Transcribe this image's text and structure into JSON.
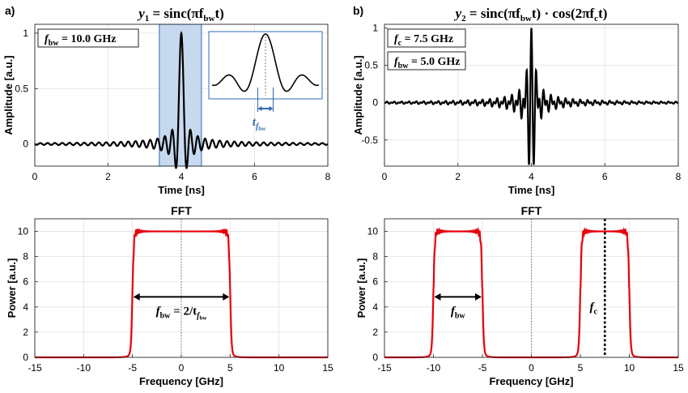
{
  "colors": {
    "signal": "#000000",
    "fft": "#e8000b",
    "highlight_fill": "#c7d9ef",
    "highlight_stroke": "#2e6ab3",
    "annotation_blue": "#2e6ab3",
    "grid": "#e2e2e2"
  },
  "panel_labels": {
    "a": "a)",
    "b": "b)"
  },
  "chart_data": [
    {
      "id": "a_time",
      "type": "line",
      "title_var": "y",
      "title_sub": "1",
      "title_expr": "= sinc(πf",
      "title_expr_sub": "bw",
      "title_expr_end": "t)",
      "xlabel": "Time [ns]",
      "ylabel": "Amplitude [a.u.]",
      "xlim": [
        0,
        8
      ],
      "ylim": [
        -0.2,
        1.08
      ],
      "xticks": [
        "0",
        "2",
        "4",
        "6",
        "8"
      ],
      "yticks": [
        "0",
        "0.5",
        "1"
      ],
      "grid": true,
      "signal": {
        "kind": "sinc",
        "center": 4,
        "bw_ghz": 10.0,
        "fc_ghz": 0
      },
      "highlight_window": [
        3.4,
        4.55
      ],
      "param_boxes": [
        {
          "var": "f",
          "sub": "bw",
          "text": "= 10.0 GHz"
        }
      ],
      "inset": {
        "type": "line",
        "annotation_var": "t",
        "annotation_sub": "f",
        "annotation_subsub": "bw"
      }
    },
    {
      "id": "b_time",
      "type": "line",
      "title_var": "y",
      "title_sub": "2",
      "title_expr": "= sinc(πf",
      "title_expr_sub": "bw",
      "title_expr_mid": "t) · cos(2πf",
      "title_expr_sub2": "c",
      "title_expr_end": "t)",
      "xlabel": "Time [ns]",
      "ylabel": "Amplitude [a.u.]",
      "xlim": [
        0,
        8
      ],
      "ylim": [
        -0.85,
        1.05
      ],
      "xticks": [
        "0",
        "2",
        "4",
        "6",
        "8"
      ],
      "yticks": [
        "-0.5",
        "0",
        "0.5",
        "1"
      ],
      "grid": true,
      "signal": {
        "kind": "sinc_cos",
        "center": 4,
        "bw_ghz": 5.0,
        "fc_ghz": 7.5
      },
      "param_boxes": [
        {
          "var": "f",
          "sub": "c",
          "text": "= 7.5 GHz"
        },
        {
          "var": "f",
          "sub": "bw",
          "text": "= 5.0 GHz"
        }
      ]
    },
    {
      "id": "a_fft",
      "type": "line",
      "title": "FFT",
      "xlabel": "Frequency [GHz]",
      "ylabel": "Power [a.u.]",
      "xlim": [
        -15,
        15
      ],
      "ylim": [
        0,
        11
      ],
      "xticks": [
        "-15",
        "-10",
        "-5",
        "0",
        "5",
        "10",
        "15"
      ],
      "yticks": [
        "0",
        "2",
        "4",
        "6",
        "8",
        "10"
      ],
      "grid": true,
      "bands": [
        [
          -5,
          5
        ]
      ],
      "band_level": 10,
      "annotation": {
        "from": -5,
        "to": 5,
        "y": 4.8,
        "var": "f",
        "sub": "bw",
        "text": "= 2/t",
        "tsub": "f",
        "tsubsub": "bw"
      }
    },
    {
      "id": "b_fft",
      "type": "line",
      "title": "FFT",
      "xlabel": "Frequency [GHz]",
      "ylabel": "Power [a.u.]",
      "xlim": [
        -15,
        15
      ],
      "ylim": [
        0,
        11
      ],
      "xticks": [
        "-15",
        "-10",
        "-5",
        "0",
        "5",
        "10",
        "15"
      ],
      "yticks": [
        "0",
        "2",
        "4",
        "6",
        "8",
        "10"
      ],
      "grid": true,
      "bands": [
        [
          -10,
          -5
        ],
        [
          5,
          10
        ]
      ],
      "band_level": 10,
      "annotation": {
        "from": -10,
        "to": -5,
        "y": 4.8,
        "var": "f",
        "sub": "bw"
      },
      "fc_marker": {
        "x": 7.5,
        "var": "f",
        "sub": "c"
      }
    }
  ]
}
